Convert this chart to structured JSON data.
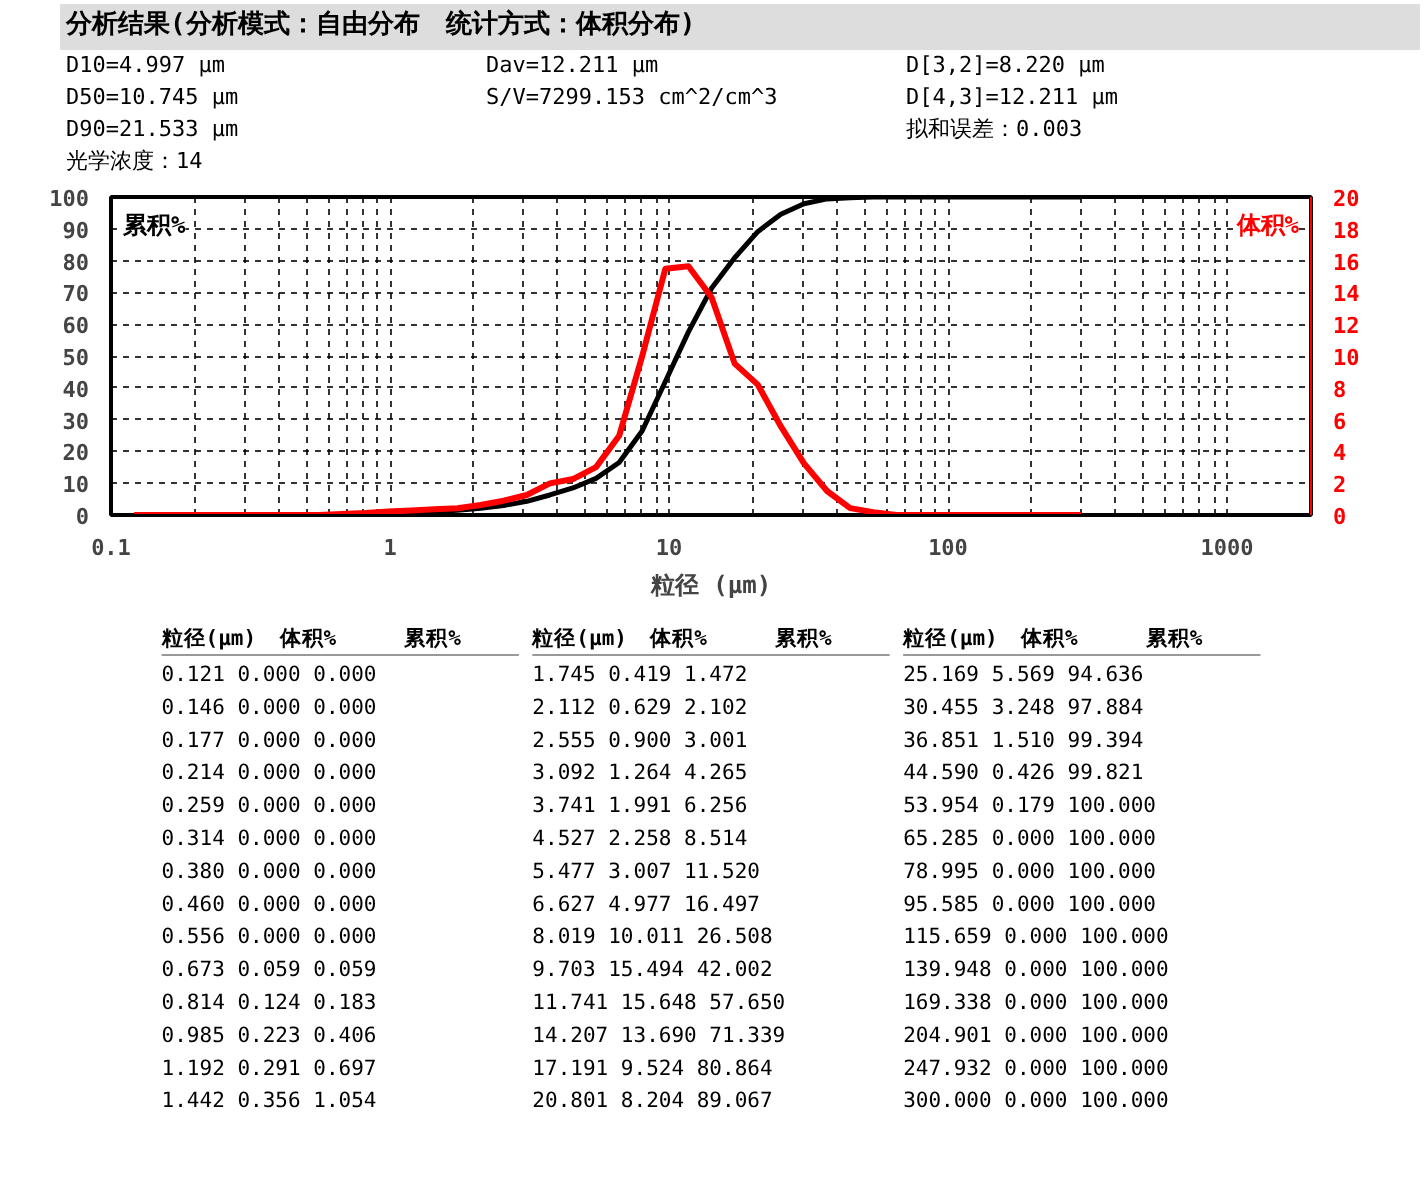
{
  "chart_data": [
    {
      "type": "line",
      "title": "分析结果(分析模式：自由分布　统计方式：体积分布)",
      "annotations": [
        "D10=4.997 μm",
        "Dav=12.211 μm",
        "D[3,2]=8.220 μm",
        "D50=10.745 μm",
        "S/V=7299.153 cm^2/cm^3",
        "D[4,3]=12.211 μm",
        "D90=21.533 μm",
        "拟和误差：0.003",
        "光学浓度：14"
      ],
      "xlabel": "粒径 (μm)",
      "log": "x",
      "x": [
        0.121,
        0.146,
        0.177,
        0.214,
        0.259,
        0.314,
        0.38,
        0.46,
        0.556,
        0.673,
        0.814,
        0.985,
        1.192,
        1.442,
        1.745,
        2.112,
        2.555,
        3.092,
        3.741,
        4.527,
        5.477,
        6.627,
        8.019,
        9.703,
        11.741,
        14.207,
        17.191,
        20.801,
        25.169,
        30.455,
        36.851,
        44.59,
        53.954,
        65.285,
        78.995,
        95.585,
        115.659,
        139.948,
        169.338,
        204.901,
        247.932,
        300.0
      ],
      "series": [
        {
          "name": "累积%",
          "color": "#000000",
          "values": [
            null,
            null,
            null,
            null,
            null,
            null,
            null,
            null,
            null,
            0.06,
            0.2,
            0.4,
            0.7,
            1.1,
            1.5,
            2.1,
            3.0,
            4.3,
            6.3,
            8.5,
            11.5,
            16.5,
            26.5,
            42.0,
            57.6,
            71.3,
            80.9,
            89.1,
            94.6,
            97.9,
            99.4,
            99.8,
            100,
            100,
            100,
            100,
            100,
            100,
            100,
            100,
            100,
            100
          ]
        },
        {
          "name": "体积%",
          "color": "#ff0000",
          "axis": "y2",
          "values": [
            0,
            0,
            0,
            0,
            0,
            0,
            0,
            0,
            0,
            0.06,
            0.12,
            0.22,
            0.29,
            0.36,
            0.42,
            0.63,
            0.9,
            1.26,
            1.99,
            2.26,
            3.01,
            4.98,
            10.01,
            15.49,
            15.65,
            13.69,
            9.52,
            8.2,
            5.57,
            3.25,
            1.51,
            0.43,
            0.18,
            0,
            0,
            0,
            0,
            0,
            0,
            0,
            0,
            0
          ]
        }
      ],
      "xlim": [
        0.1,
        2000
      ],
      "xticks": [
        0.1,
        1,
        10,
        100,
        1000
      ],
      "ylim": [
        0,
        100
      ],
      "yticks": [
        0,
        10,
        20,
        30,
        40,
        50,
        60,
        70,
        80,
        90,
        100
      ],
      "y2lim": [
        0,
        20
      ],
      "y2ticks": [
        0,
        2,
        4,
        6,
        8,
        10,
        12,
        14,
        16,
        18,
        20
      ],
      "grid": true,
      "marker": "none",
      "line_style": "solid"
    },
    {
      "type": "other",
      "annotations": [
        "粒径(μm)",
        "体积%",
        "累积%",
        "粒径(μm)",
        "体积%",
        "累积%",
        "粒径(μm)",
        "体积%",
        "累积%",
        "0.121     0.000    0.000",
        "1.745     0.419    1.472",
        "25.169    5.569    94.636",
        "0.146     0.000    0.000",
        "2.112     0.629    2.102",
        "30.455    3.248    97.884",
        "0.177     0.000    0.000",
        "2.555     0.900    3.001",
        "36.851    1.510    99.394",
        "0.214     0.000    0.000",
        "3.092     1.264    4.265",
        "44.590    0.426    99.821",
        "0.259     0.000    0.000",
        "3.741     1.991    6.256",
        "53.954    0.179    100.000",
        "0.314     0.000    0.000",
        "4.527     2.258    8.514",
        "65.285    0.000    100.000",
        "0.380     0.000    0.000",
        "5.477     3.007    11.520",
        "78.995    0.000    100.000",
        "0.460     0.000    0.000",
        "6.627     4.977    16.497",
        "95.585    0.000    100.000",
        "0.556     0.000    0.000",
        "8.019     10.011   26.508",
        "115.659   0.000    100.000",
        "0.673     0.059    0.059",
        "9.703     15.494   42.002",
        "139.948   0.000    100.000",
        "0.814     0.124    0.183",
        "11.741    15.648   57.650",
        "169.338   0.000    100.000",
        "0.985     0.223    0.406",
        "14.207    13.690   71.339",
        "204.901   0.000    100.000",
        "1.192     0.291    0.697",
        "17.191    9.524    80.864",
        "247.932   0.000    100.000",
        "1.442     0.356    1.054",
        "20.801    8.204    89.067",
        "300.000   0.000    100.000"
      ]
    }
  ]
}
